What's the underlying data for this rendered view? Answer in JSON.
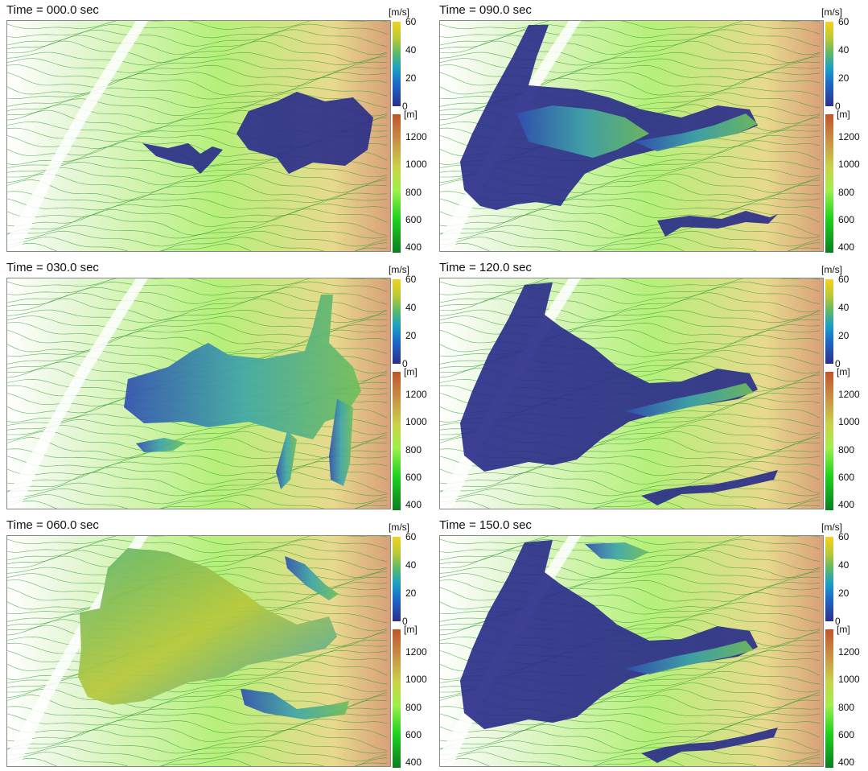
{
  "panels": [
    {
      "title": "Time = 000.0 sec",
      "stage": 0
    },
    {
      "title": "Time = 090.0 sec",
      "stage": 3
    },
    {
      "title": "Time = 030.0 sec",
      "stage": 1
    },
    {
      "title": "Time = 120.0 sec",
      "stage": 4
    },
    {
      "title": "Time = 060.0 sec",
      "stage": 2
    },
    {
      "title": "Time = 150.0 sec",
      "stage": 5
    }
  ],
  "speed_colorbar": {
    "unit": "[m/s]",
    "ticks": [
      "60",
      "40",
      "20",
      "0"
    ]
  },
  "elevation_colorbar": {
    "unit": "[m]",
    "ticks": [
      "1200",
      "1000",
      "800",
      "600",
      "400"
    ]
  },
  "colors": {
    "contour": "#2e9b2e",
    "flow_slow": "#2b2f8a",
    "flow_fast": "#e7c43a",
    "terrain_high": "#c2522b"
  }
}
